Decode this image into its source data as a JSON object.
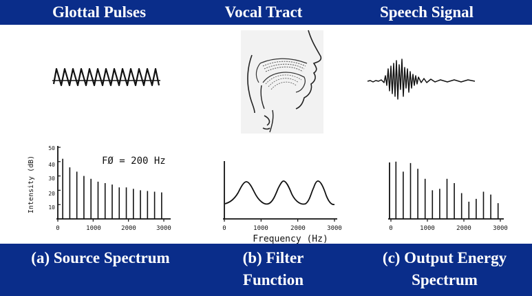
{
  "titles": {
    "glottal": "Glottal Pulses",
    "vocal": "Vocal Tract",
    "speech": "Speech Signal"
  },
  "captions": {
    "source": "(a) Source Spectrum",
    "filter_line1": "(b) Filter",
    "filter_line2": "Function",
    "output_line1": "(c) Output Energy",
    "output_line2": "Spectrum"
  },
  "source_plot": {
    "annotation": "FØ = 200 Hz",
    "ylabel": "Intensity (dB)",
    "yticks": [
      "50",
      "40",
      "30",
      "20",
      "10"
    ],
    "xticks": [
      "0",
      "1000",
      "2000",
      "3000"
    ],
    "harmonics": [
      42,
      36,
      33,
      30,
      28,
      26,
      25,
      24,
      22,
      22,
      21,
      20,
      19.5,
      19,
      18.5
    ]
  },
  "filter_plot": {
    "xlabel": "Frequency (Hz)",
    "xticks": [
      "0",
      "1000",
      "2000",
      "3000"
    ],
    "formants_hz": [
      500,
      1500,
      2500
    ]
  },
  "output_plot": {
    "xticks": [
      "0",
      "1000",
      "2000",
      "3000"
    ],
    "harmonics": [
      40,
      33,
      39,
      35,
      28,
      20,
      21,
      28,
      25,
      18,
      12,
      14,
      19,
      17,
      11
    ]
  },
  "colors": {
    "background": "#0a2d8a",
    "panel": "#ffffff",
    "ink": "#111111"
  },
  "illustration": {
    "vocal_tract_icon": "vocal-tract-sagittal-icon"
  }
}
